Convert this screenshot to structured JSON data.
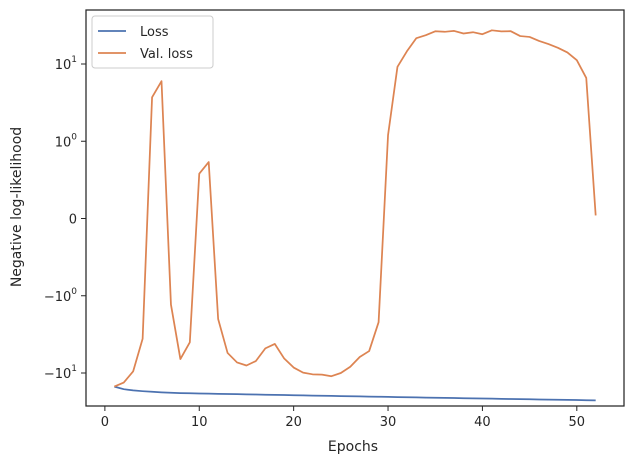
{
  "chart_data": {
    "type": "line",
    "xlabel": "Epochs",
    "ylabel": "Negative log-likelihood",
    "yscale": "symlog",
    "xlim": [
      -2,
      55
    ],
    "grid": false,
    "legend_placement": "top-left",
    "x_ticks": [
      0,
      10,
      20,
      30,
      40,
      50
    ],
    "y_ticks": [
      {
        "value": -10,
        "base": "−10",
        "exp": "1"
      },
      {
        "value": -1,
        "base": "−10",
        "exp": "0"
      },
      {
        "value": 0,
        "base": "0",
        "exp": ""
      },
      {
        "value": 1,
        "base": "10",
        "exp": "0"
      },
      {
        "value": 10,
        "base": "10",
        "exp": "1"
      }
    ],
    "series": [
      {
        "name": "Loss",
        "color": "#4c72b0",
        "x": [
          1,
          2,
          3,
          4,
          5,
          6,
          7,
          8,
          9,
          10,
          11,
          12,
          13,
          14,
          15,
          16,
          17,
          18,
          19,
          20,
          21,
          22,
          23,
          24,
          25,
          26,
          27,
          28,
          29,
          30,
          31,
          32,
          33,
          34,
          35,
          36,
          37,
          38,
          39,
          40,
          41,
          42,
          43,
          44,
          45,
          46,
          47,
          48,
          49,
          50,
          51,
          52
        ],
        "y": [
          -15.0,
          -16.2,
          -16.8,
          -17.2,
          -17.5,
          -17.8,
          -18.0,
          -18.2,
          -18.3,
          -18.4,
          -18.5,
          -18.6,
          -18.7,
          -18.8,
          -18.9,
          -19.0,
          -19.1,
          -19.2,
          -19.3,
          -19.4,
          -19.5,
          -19.6,
          -19.7,
          -19.8,
          -19.9,
          -20.0,
          -20.1,
          -20.2,
          -20.3,
          -20.4,
          -20.5,
          -20.6,
          -20.7,
          -20.8,
          -20.9,
          -21.0,
          -21.1,
          -21.2,
          -21.3,
          -21.4,
          -21.5,
          -21.6,
          -21.7,
          -21.8,
          -21.9,
          -22.0,
          -22.1,
          -22.2,
          -22.3,
          -22.4,
          -22.5,
          -22.6
        ]
      },
      {
        "name": "Val. loss",
        "color": "#dd8452",
        "x": [
          1,
          2,
          3,
          4,
          5,
          6,
          7,
          8,
          9,
          10,
          11,
          12,
          13,
          14,
          15,
          16,
          17,
          18,
          19,
          20,
          21,
          22,
          23,
          24,
          25,
          26,
          27,
          28,
          29,
          30,
          31,
          32,
          33,
          34,
          35,
          36,
          37,
          38,
          39,
          40,
          41,
          42,
          43,
          44,
          45,
          46,
          47,
          48,
          49,
          50,
          51,
          52
        ],
        "y": [
          -15.0,
          -13.3,
          -9.5,
          -3.6,
          3.7,
          6.0,
          -1.3,
          -6.6,
          -4.0,
          0.58,
          0.73,
          -2.0,
          -5.5,
          -7.3,
          -8.0,
          -7.0,
          -4.8,
          -4.2,
          -6.5,
          -8.5,
          -9.9,
          -10.4,
          -10.5,
          -11.0,
          -10.0,
          -8.3,
          -6.2,
          -5.2,
          -2.2,
          1.2,
          9.2,
          14.6,
          21.6,
          23.6,
          26.5,
          26.1,
          26.8,
          24.8,
          25.8,
          24.3,
          27.3,
          26.4,
          26.6,
          23.0,
          22.4,
          19.9,
          18.1,
          16.2,
          14.1,
          11.2,
          6.6,
          0.04
        ]
      }
    ]
  }
}
